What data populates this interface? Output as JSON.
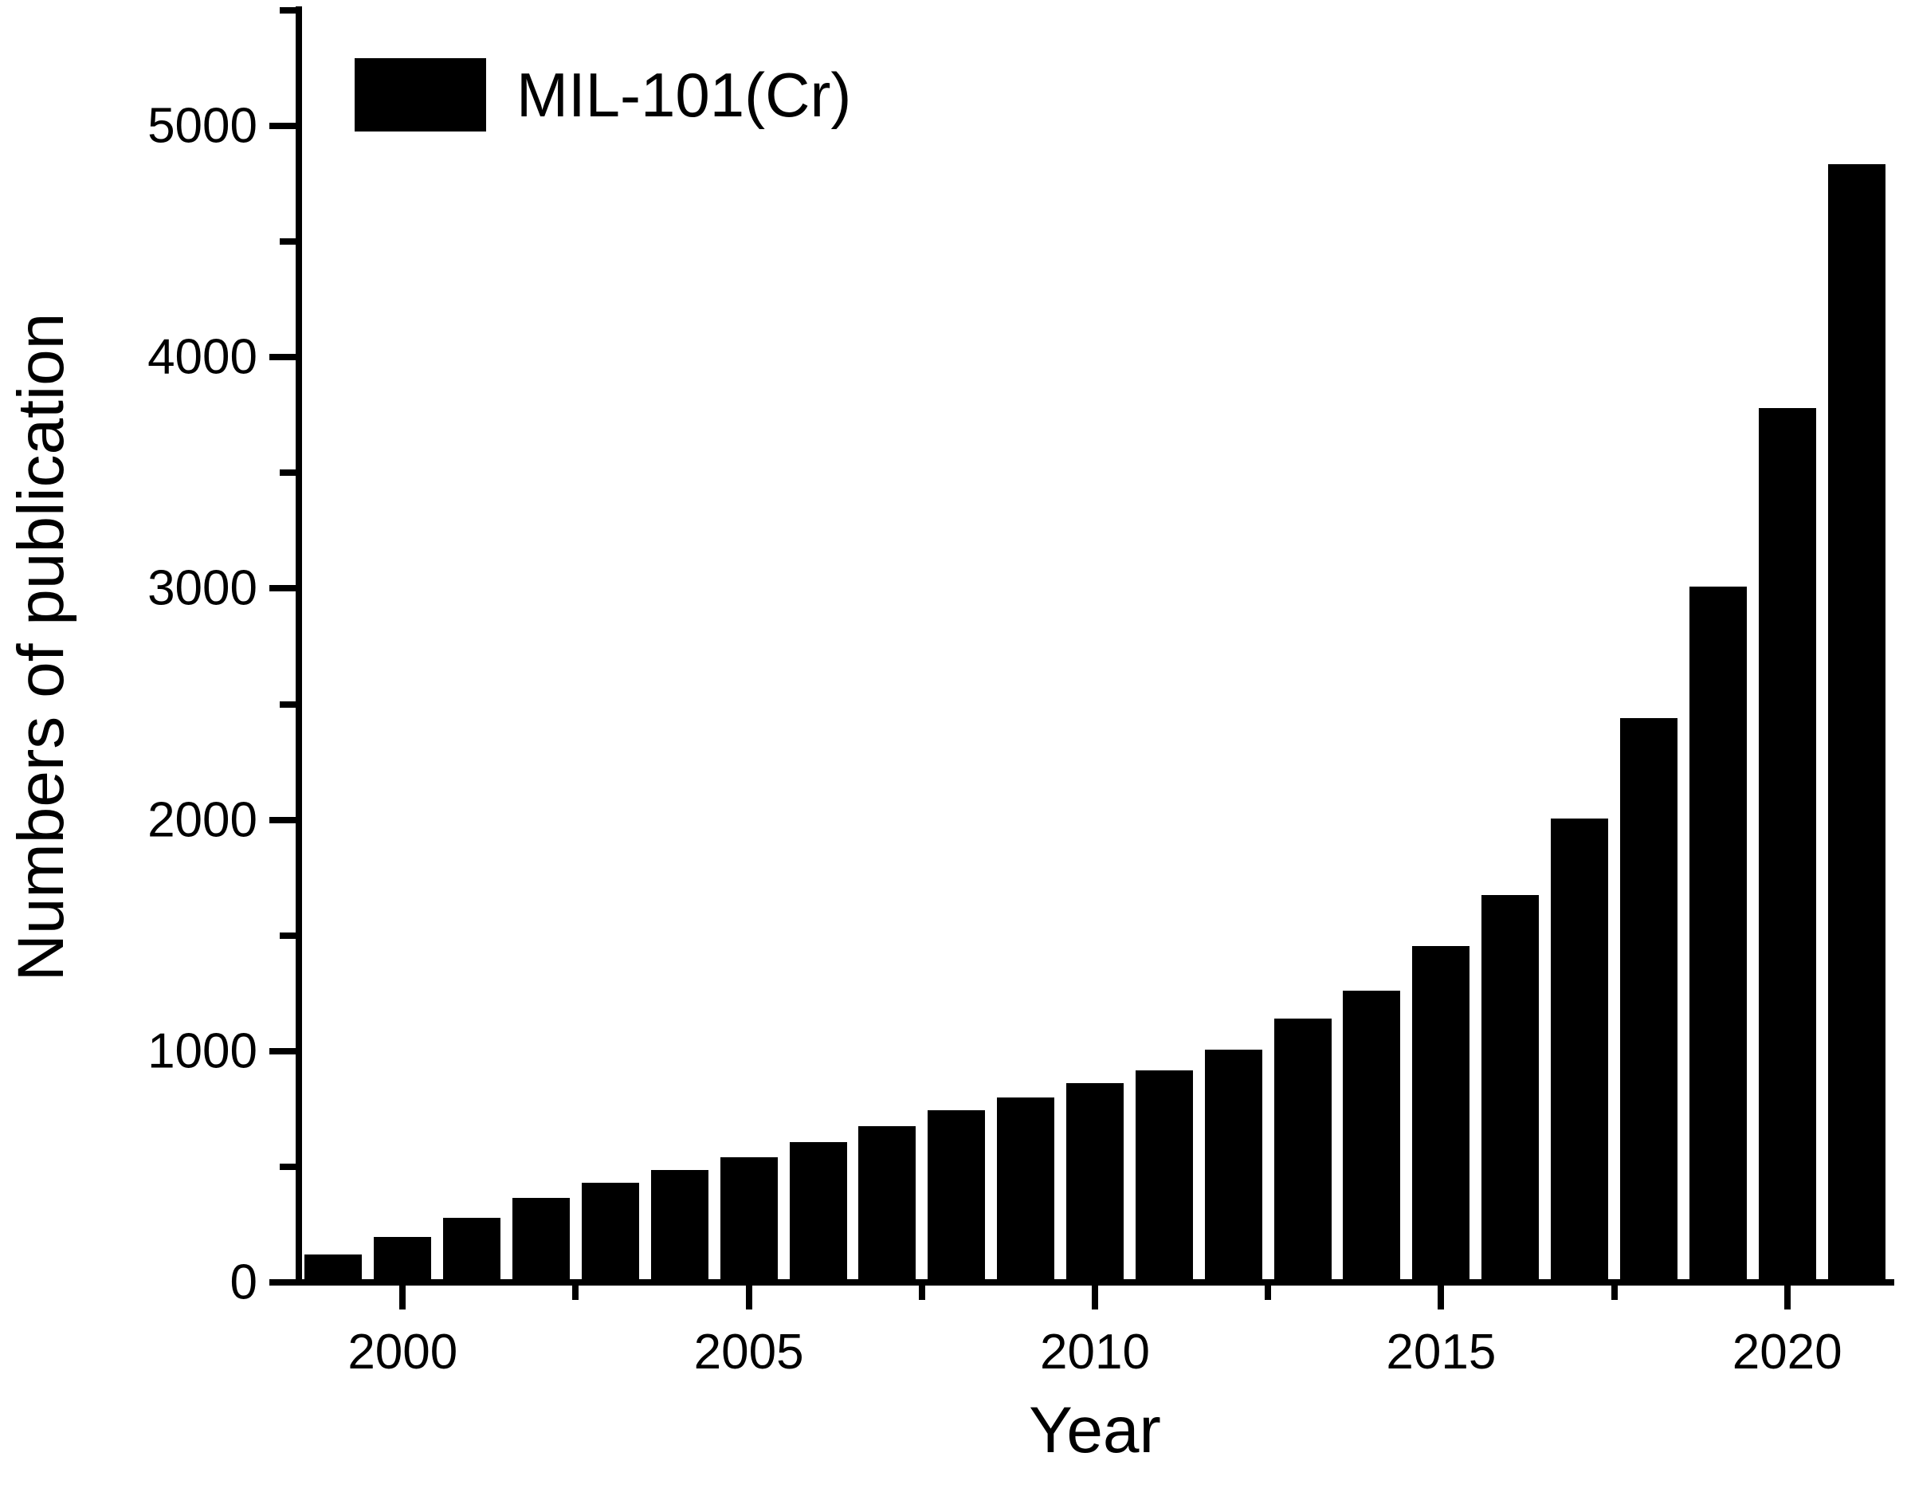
{
  "figure": {
    "background_color": "#ffffff",
    "axis_color": "#000000",
    "bar_color": "#000000"
  },
  "legend": {
    "label": "MIL-101(Cr)",
    "swatch_color": "#000000",
    "position": "upper-left-inside"
  },
  "axes": {
    "x_title": "Year",
    "y_title": "Numbers of publication"
  },
  "chart_data": {
    "type": "bar",
    "title": "",
    "xlabel": "Year",
    "ylabel": "Numbers of publication",
    "series_name": "MIL-101(Cr)",
    "categories": [
      1999,
      2000,
      2001,
      2002,
      2003,
      2004,
      2005,
      2006,
      2007,
      2008,
      2009,
      2010,
      2011,
      2012,
      2013,
      2014,
      2015,
      2016,
      2017,
      2018,
      2019,
      2020,
      2021
    ],
    "values": [
      120,
      195,
      280,
      365,
      430,
      485,
      540,
      605,
      675,
      745,
      800,
      860,
      915,
      1005,
      1140,
      1260,
      1455,
      1675,
      2005,
      2440,
      3010,
      3780,
      4835
    ],
    "xlim": [
      1998.5,
      2021.5
    ],
    "ylim": [
      0,
      5500
    ],
    "x_major_ticks": [
      2000,
      2005,
      2010,
      2015,
      2020
    ],
    "x_minor_ticks": [
      2002.5,
      2007.5,
      2012.5,
      2017.5
    ],
    "y_major_ticks": [
      0,
      1000,
      2000,
      3000,
      4000,
      5000
    ],
    "y_major_tick_labels": [
      "0",
      "1000",
      "2000",
      "3000",
      "4000",
      "5000"
    ],
    "y_minor_ticks": [
      500,
      1500,
      2500,
      3500,
      4500,
      5500
    ],
    "grid": false,
    "legend_position": "upper-left-inside",
    "bar_color": "#000000"
  }
}
